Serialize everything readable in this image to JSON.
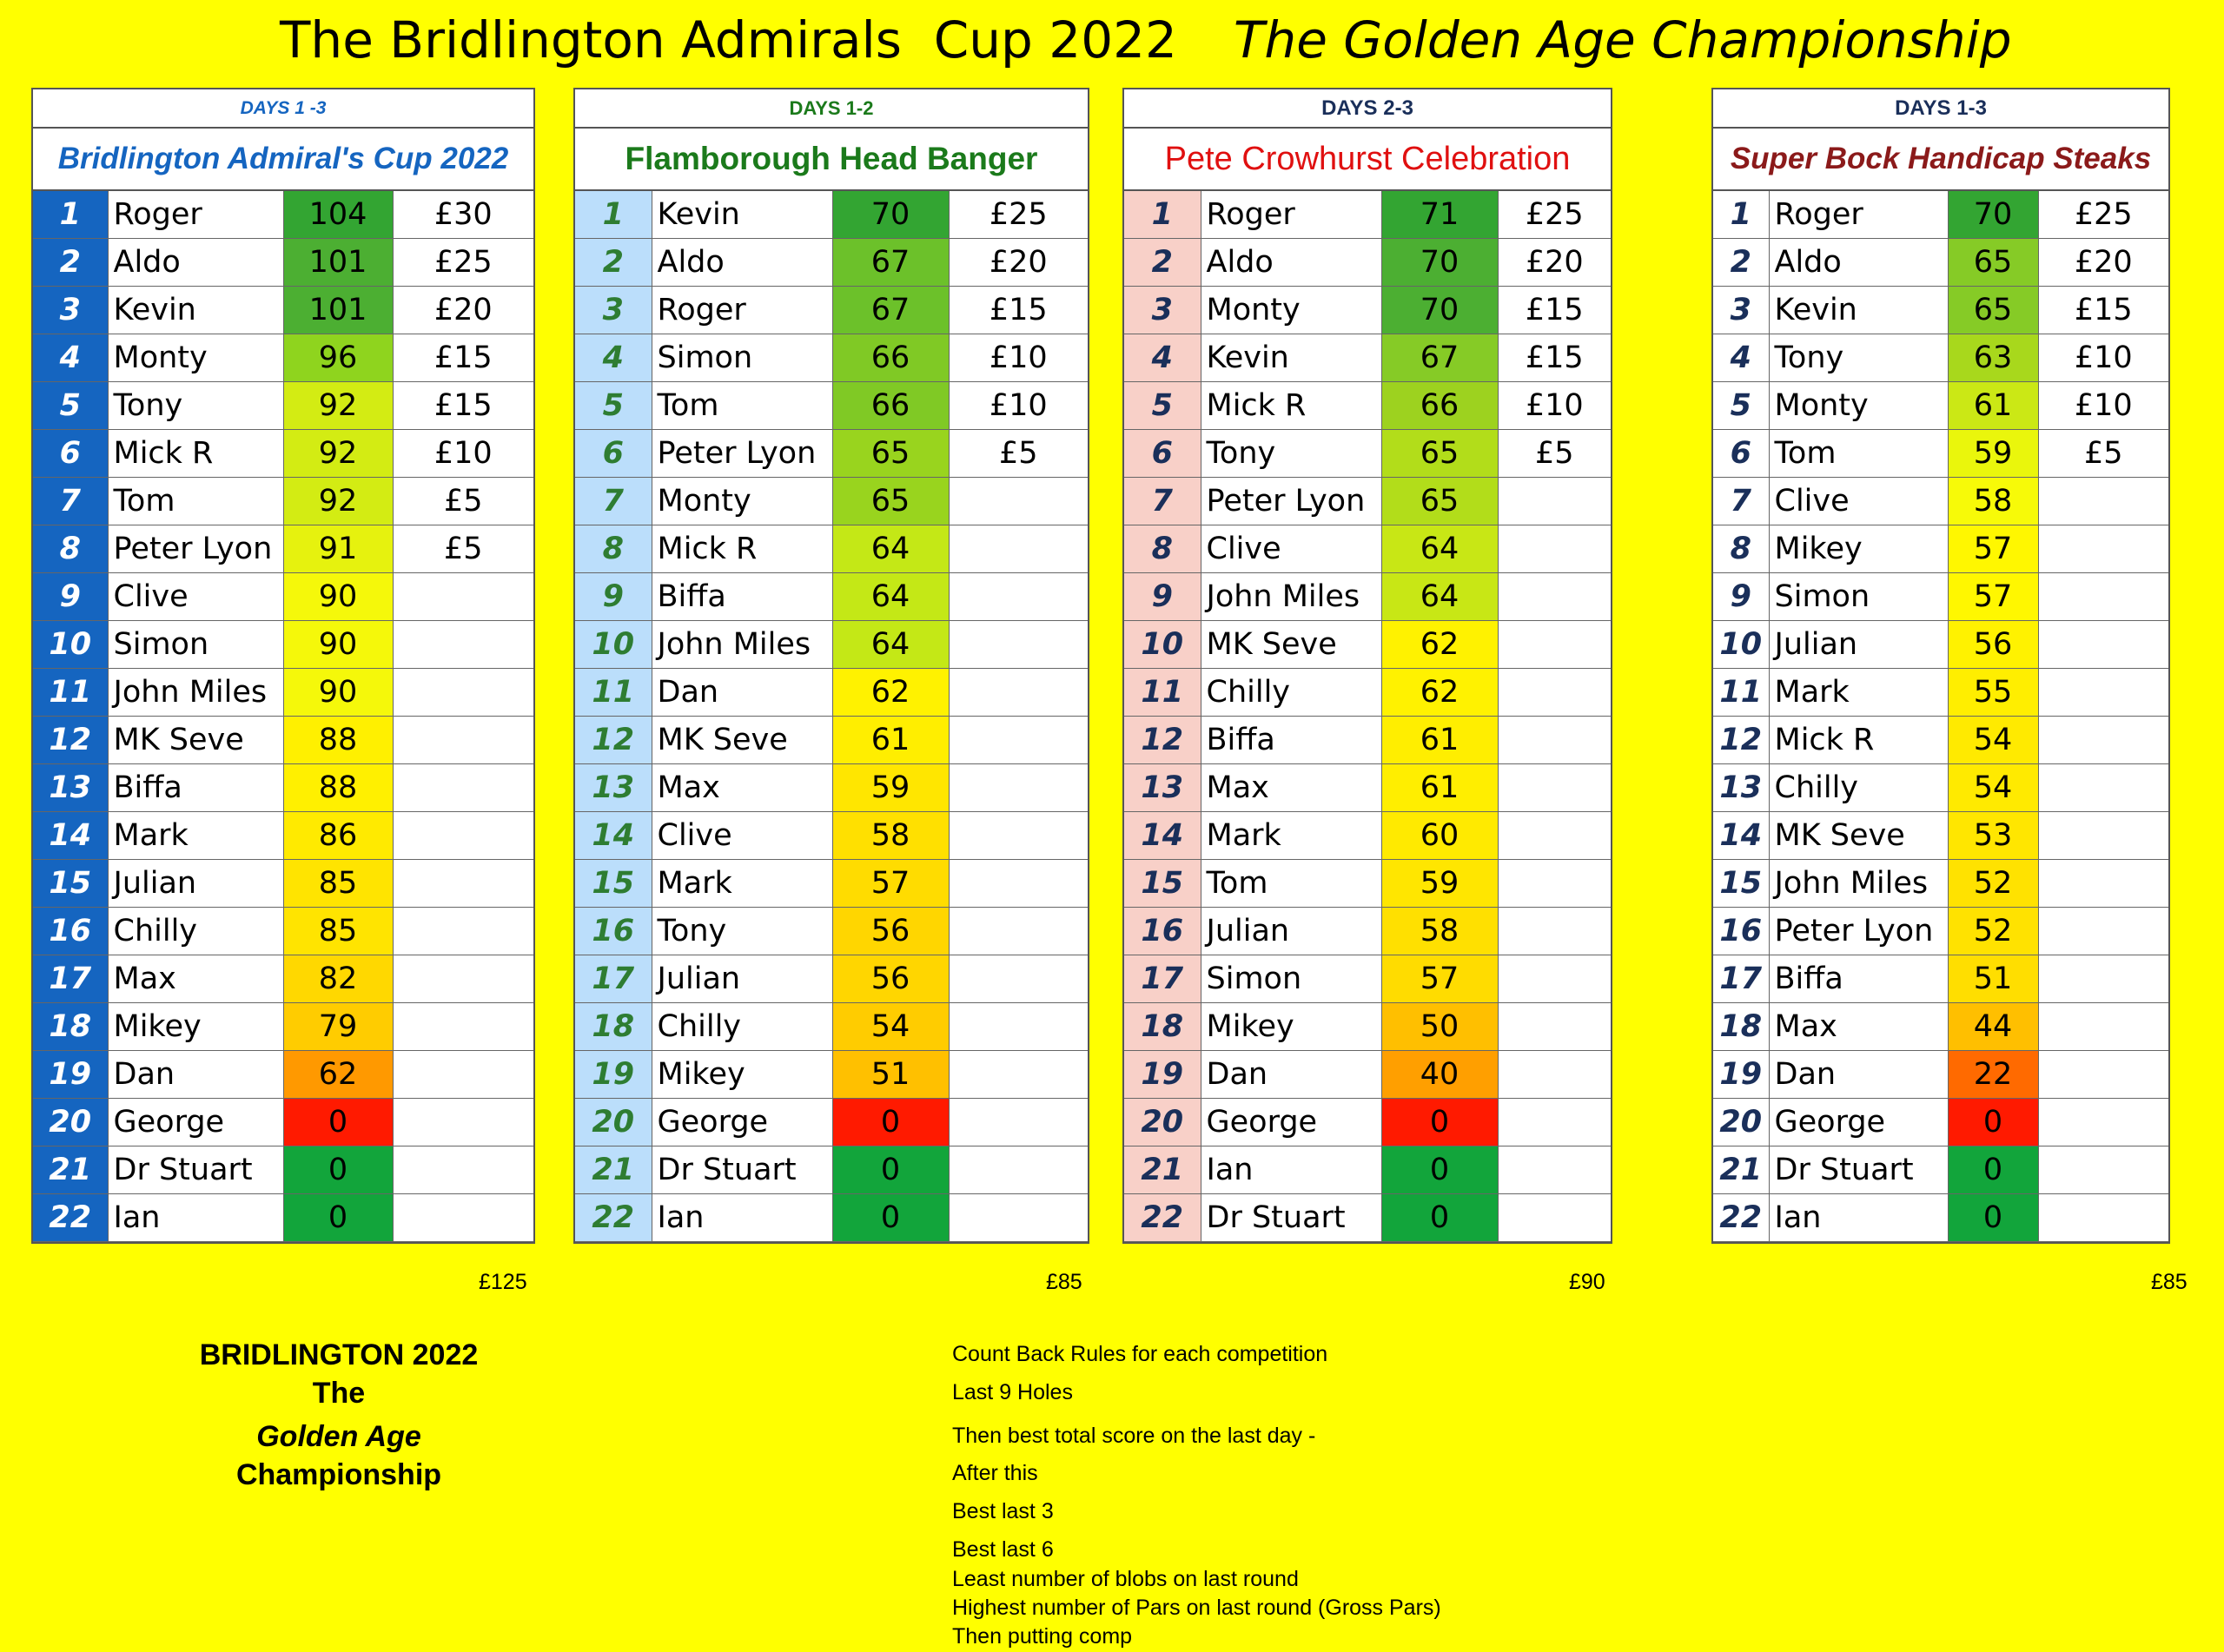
{
  "header": {
    "title_left": "The Bridlington Admirals  Cup 2022",
    "title_right": "The Golden Age Championship"
  },
  "panels": [
    {
      "days": "DAYS 1 -3",
      "title": "Bridlington Admiral's Cup 2022",
      "total": "£125",
      "rows": [
        {
          "pos": "1",
          "name": "Roger",
          "score": "104",
          "prize": "£30",
          "color": "#33a532"
        },
        {
          "pos": "2",
          "name": "Aldo",
          "score": "101",
          "prize": "£25",
          "color": "#4caf32"
        },
        {
          "pos": "3",
          "name": "Kevin",
          "score": "101",
          "prize": "£20",
          "color": "#4caf32"
        },
        {
          "pos": "4",
          "name": "Monty",
          "score": "96",
          "prize": "£15",
          "color": "#8fd41e"
        },
        {
          "pos": "5",
          "name": "Tony",
          "score": "92",
          "prize": "£15",
          "color": "#d3ec13"
        },
        {
          "pos": "6",
          "name": "Mick R",
          "score": "92",
          "prize": "£10",
          "color": "#d3ec13"
        },
        {
          "pos": "7",
          "name": "Tom",
          "score": "92",
          "prize": "£5",
          "color": "#d3ec13"
        },
        {
          "pos": "8",
          "name": "Peter Lyon",
          "score": "91",
          "prize": "£5",
          "color": "#e6f20e"
        },
        {
          "pos": "9",
          "name": "Clive",
          "score": "90",
          "prize": "",
          "color": "#f5f80a"
        },
        {
          "pos": "10",
          "name": "Simon",
          "score": "90",
          "prize": "",
          "color": "#f5f80a"
        },
        {
          "pos": "11",
          "name": "John Miles",
          "score": "90",
          "prize": "",
          "color": "#f5f80a"
        },
        {
          "pos": "12",
          "name": "MK Seve",
          "score": "88",
          "prize": "",
          "color": "#fff000"
        },
        {
          "pos": "13",
          "name": "Biffa",
          "score": "88",
          "prize": "",
          "color": "#fff000"
        },
        {
          "pos": "14",
          "name": "Mark",
          "score": "86",
          "prize": "",
          "color": "#ffea00"
        },
        {
          "pos": "15",
          "name": "Julian",
          "score": "85",
          "prize": "",
          "color": "#ffe400"
        },
        {
          "pos": "16",
          "name": "Chilly",
          "score": "85",
          "prize": "",
          "color": "#ffe400"
        },
        {
          "pos": "17",
          "name": "Max",
          "score": "82",
          "prize": "",
          "color": "#ffd800"
        },
        {
          "pos": "18",
          "name": "Mikey",
          "score": "79",
          "prize": "",
          "color": "#ffcc00"
        },
        {
          "pos": "19",
          "name": "Dan",
          "score": "62",
          "prize": "",
          "color": "#ff9900"
        },
        {
          "pos": "20",
          "name": "George",
          "score": "0",
          "prize": "",
          "color": "#ff1a00"
        },
        {
          "pos": "21",
          "name": "Dr Stuart",
          "score": "0",
          "prize": "",
          "color": "#12a53b"
        },
        {
          "pos": "22",
          "name": "Ian",
          "score": "0",
          "prize": "",
          "color": "#12a53b"
        }
      ]
    },
    {
      "days": "DAYS 1-2",
      "title": "Flamborough Head Banger",
      "total": "£85",
      "rows": [
        {
          "pos": "1",
          "name": "Kevin",
          "score": "70",
          "prize": "£25",
          "color": "#33a532"
        },
        {
          "pos": "2",
          "name": "Aldo",
          "score": "67",
          "prize": "£20",
          "color": "#6cc12a"
        },
        {
          "pos": "3",
          "name": "Roger",
          "score": "67",
          "prize": "£15",
          "color": "#6cc12a"
        },
        {
          "pos": "4",
          "name": "Simon",
          "score": "66",
          "prize": "£10",
          "color": "#80c925"
        },
        {
          "pos": "5",
          "name": "Tom",
          "score": "66",
          "prize": "£10",
          "color": "#80c925"
        },
        {
          "pos": "6",
          "name": "Peter Lyon",
          "score": "65",
          "prize": "£5",
          "color": "#99d41e"
        },
        {
          "pos": "7",
          "name": "Monty",
          "score": "65",
          "prize": "",
          "color": "#99d41e"
        },
        {
          "pos": "8",
          "name": "Mick R",
          "score": "64",
          "prize": "",
          "color": "#c4e816"
        },
        {
          "pos": "9",
          "name": "Biffa",
          "score": "64",
          "prize": "",
          "color": "#c4e816"
        },
        {
          "pos": "10",
          "name": "John Miles",
          "score": "64",
          "prize": "",
          "color": "#c4e816"
        },
        {
          "pos": "11",
          "name": "Dan",
          "score": "62",
          "prize": "",
          "color": "#fff200"
        },
        {
          "pos": "12",
          "name": "MK Seve",
          "score": "61",
          "prize": "",
          "color": "#ffee00"
        },
        {
          "pos": "13",
          "name": "Max",
          "score": "59",
          "prize": "",
          "color": "#ffe600"
        },
        {
          "pos": "14",
          "name": "Clive",
          "score": "58",
          "prize": "",
          "color": "#ffe000"
        },
        {
          "pos": "15",
          "name": "Mark",
          "score": "57",
          "prize": "",
          "color": "#ffdc00"
        },
        {
          "pos": "16",
          "name": "Tony",
          "score": "56",
          "prize": "",
          "color": "#ffd600"
        },
        {
          "pos": "17",
          "name": "Julian",
          "score": "56",
          "prize": "",
          "color": "#ffd600"
        },
        {
          "pos": "18",
          "name": "Chilly",
          "score": "54",
          "prize": "",
          "color": "#ffcc00"
        },
        {
          "pos": "19",
          "name": "Mikey",
          "score": "51",
          "prize": "",
          "color": "#ffc000"
        },
        {
          "pos": "20",
          "name": "George",
          "score": "0",
          "prize": "",
          "color": "#ff1a00"
        },
        {
          "pos": "21",
          "name": "Dr Stuart",
          "score": "0",
          "prize": "",
          "color": "#12a53b"
        },
        {
          "pos": "22",
          "name": "Ian",
          "score": "0",
          "prize": "",
          "color": "#12a53b"
        }
      ]
    },
    {
      "days": "DAYS 2-3",
      "title": "Pete Crowhurst Celebration",
      "total": "£90",
      "rows": [
        {
          "pos": "1",
          "name": "Roger",
          "score": "71",
          "prize": "£25",
          "color": "#33a532"
        },
        {
          "pos": "2",
          "name": "Aldo",
          "score": "70",
          "prize": "£20",
          "color": "#4caf32"
        },
        {
          "pos": "3",
          "name": "Monty",
          "score": "70",
          "prize": "£15",
          "color": "#4caf32"
        },
        {
          "pos": "4",
          "name": "Kevin",
          "score": "67",
          "prize": "£15",
          "color": "#86cb26"
        },
        {
          "pos": "5",
          "name": "Mick R",
          "score": "66",
          "prize": "£10",
          "color": "#9dd21f"
        },
        {
          "pos": "6",
          "name": "Tony",
          "score": "65",
          "prize": "£5",
          "color": "#b2dd1a"
        },
        {
          "pos": "7",
          "name": "Peter Lyon",
          "score": "65",
          "prize": "",
          "color": "#b2dd1a"
        },
        {
          "pos": "8",
          "name": "Clive",
          "score": "64",
          "prize": "",
          "color": "#c8e715"
        },
        {
          "pos": "9",
          "name": "John Miles",
          "score": "64",
          "prize": "",
          "color": "#c8e715"
        },
        {
          "pos": "10",
          "name": "MK Seve",
          "score": "62",
          "prize": "",
          "color": "#fff200"
        },
        {
          "pos": "11",
          "name": "Chilly",
          "score": "62",
          "prize": "",
          "color": "#fff200"
        },
        {
          "pos": "12",
          "name": "Biffa",
          "score": "61",
          "prize": "",
          "color": "#ffee00"
        },
        {
          "pos": "13",
          "name": "Max",
          "score": "61",
          "prize": "",
          "color": "#ffee00"
        },
        {
          "pos": "14",
          "name": "Mark",
          "score": "60",
          "prize": "",
          "color": "#ffea00"
        },
        {
          "pos": "15",
          "name": "Tom",
          "score": "59",
          "prize": "",
          "color": "#ffe600"
        },
        {
          "pos": "16",
          "name": "Julian",
          "score": "58",
          "prize": "",
          "color": "#ffe000"
        },
        {
          "pos": "17",
          "name": "Simon",
          "score": "57",
          "prize": "",
          "color": "#ffdc00"
        },
        {
          "pos": "18",
          "name": "Mikey",
          "score": "50",
          "prize": "",
          "color": "#ffbf00"
        },
        {
          "pos": "19",
          "name": "Dan",
          "score": "40",
          "prize": "",
          "color": "#ff9f00"
        },
        {
          "pos": "20",
          "name": "George",
          "score": "0",
          "prize": "",
          "color": "#ff1a00"
        },
        {
          "pos": "21",
          "name": "Ian",
          "score": "0",
          "prize": "",
          "color": "#12a53b"
        },
        {
          "pos": "22",
          "name": "Dr Stuart",
          "score": "0",
          "prize": "",
          "color": "#12a53b"
        }
      ]
    },
    {
      "days": "DAYS 1-3",
      "title": "Super Bock Handicap Steaks",
      "total": "£85",
      "rows": [
        {
          "pos": "1",
          "name": "Roger",
          "score": "70",
          "prize": "£25",
          "color": "#33a532"
        },
        {
          "pos": "2",
          "name": "Aldo",
          "score": "65",
          "prize": "£20",
          "color": "#86cb26"
        },
        {
          "pos": "3",
          "name": "Kevin",
          "score": "65",
          "prize": "£15",
          "color": "#86cb26"
        },
        {
          "pos": "4",
          "name": "Tony",
          "score": "63",
          "prize": "£10",
          "color": "#a8d81c"
        },
        {
          "pos": "5",
          "name": "Monty",
          "score": "61",
          "prize": "£10",
          "color": "#cbe815"
        },
        {
          "pos": "6",
          "name": "Tom",
          "score": "59",
          "prize": "£5",
          "color": "#eaf60c"
        },
        {
          "pos": "7",
          "name": "Clive",
          "score": "58",
          "prize": "",
          "color": "#f7fa08"
        },
        {
          "pos": "8",
          "name": "Mikey",
          "score": "57",
          "prize": "",
          "color": "#fff700"
        },
        {
          "pos": "9",
          "name": "Simon",
          "score": "57",
          "prize": "",
          "color": "#fff700"
        },
        {
          "pos": "10",
          "name": "Julian",
          "score": "56",
          "prize": "",
          "color": "#fff200"
        },
        {
          "pos": "11",
          "name": "Mark",
          "score": "55",
          "prize": "",
          "color": "#ffee00"
        },
        {
          "pos": "12",
          "name": "Mick R",
          "score": "54",
          "prize": "",
          "color": "#ffea00"
        },
        {
          "pos": "13",
          "name": "Chilly",
          "score": "54",
          "prize": "",
          "color": "#ffea00"
        },
        {
          "pos": "14",
          "name": "MK Seve",
          "score": "53",
          "prize": "",
          "color": "#ffe600"
        },
        {
          "pos": "15",
          "name": "John Miles",
          "score": "52",
          "prize": "",
          "color": "#ffe200"
        },
        {
          "pos": "16",
          "name": "Peter Lyon",
          "score": "52",
          "prize": "",
          "color": "#ffe200"
        },
        {
          "pos": "17",
          "name": "Biffa",
          "score": "51",
          "prize": "",
          "color": "#ffde00"
        },
        {
          "pos": "18",
          "name": "Max",
          "score": "44",
          "prize": "",
          "color": "#ffbf00"
        },
        {
          "pos": "19",
          "name": "Dan",
          "score": "22",
          "prize": "",
          "color": "#ff6a00"
        },
        {
          "pos": "20",
          "name": "George",
          "score": "0",
          "prize": "",
          "color": "#ff1a00"
        },
        {
          "pos": "21",
          "name": "Dr Stuart",
          "score": "0",
          "prize": "",
          "color": "#12a53b"
        },
        {
          "pos": "22",
          "name": "Ian",
          "score": "0",
          "prize": "",
          "color": "#12a53b"
        }
      ]
    }
  ],
  "footer": {
    "left": {
      "line1": "BRIDLINGTON 2022",
      "line2": "The",
      "line3": "Golden Age",
      "line4": "Championship"
    },
    "rules": [
      "Count Back Rules for each competition",
      "Last 9 Holes",
      "Then best total score on the last day -",
      "After this",
      "Best last 3",
      "Best last 6",
      "Least number of blobs on last round",
      "Highest number of Pars on last round (Gross Pars)",
      "Then putting comp"
    ]
  }
}
